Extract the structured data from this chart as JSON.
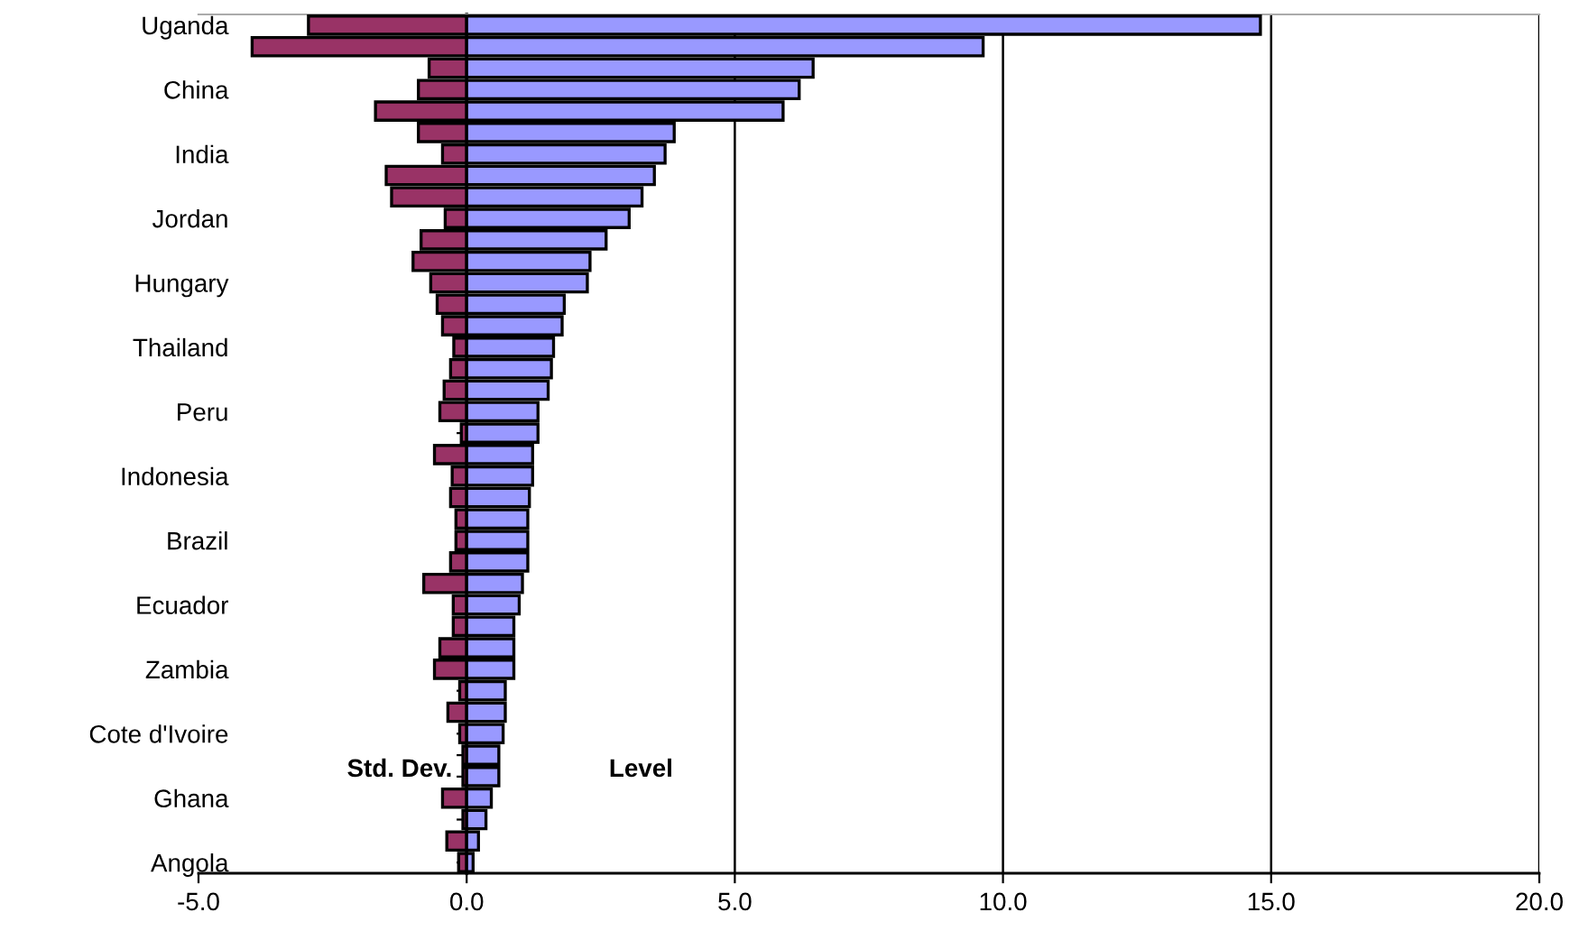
{
  "chart_data": {
    "type": "bar",
    "orientation": "horizontal",
    "stacked": true,
    "categories": [
      "Uganda",
      null,
      null,
      "China",
      null,
      null,
      "India",
      null,
      null,
      "Jordan",
      null,
      null,
      "Hungary",
      null,
      null,
      "Thailand",
      null,
      null,
      "Peru",
      null,
      null,
      "Indonesia",
      null,
      null,
      "Brazil",
      null,
      null,
      "Ecuador",
      null,
      null,
      "Zambia",
      null,
      null,
      "Cote d'Ivoire",
      null,
      null,
      "Ghana",
      null,
      null,
      "Angola"
    ],
    "series": [
      {
        "color": "#993366",
        "values": [
          -2.95,
          -4.0,
          -0.7,
          -0.9,
          -1.7,
          -0.9,
          -0.45,
          -1.5,
          -1.4,
          -0.4,
          -0.85,
          -1.0,
          -0.67,
          -0.55,
          -0.45,
          -0.24,
          -0.3,
          -0.42,
          -0.5,
          -0.1,
          -0.6,
          -0.27,
          -0.3,
          -0.2,
          -0.2,
          -0.3,
          -0.8,
          -0.25,
          -0.25,
          -0.5,
          -0.6,
          -0.13,
          -0.35,
          -0.13,
          -0.07,
          -0.07,
          -0.45,
          -0.07,
          -0.37,
          -0.15
        ]
      },
      {
        "color": "#9999ff",
        "values": [
          14.8,
          9.63,
          6.46,
          6.2,
          5.9,
          3.87,
          3.7,
          3.5,
          3.27,
          3.03,
          2.6,
          2.3,
          2.25,
          1.82,
          1.78,
          1.62,
          1.58,
          1.52,
          1.33,
          1.33,
          1.23,
          1.23,
          1.17,
          1.14,
          1.14,
          1.14,
          1.04,
          0.98,
          0.88,
          0.88,
          0.88,
          0.72,
          0.72,
          0.68,
          0.6,
          0.6,
          0.46,
          0.36,
          0.22,
          0.12
        ]
      }
    ],
    "xlim": [
      -5,
      20
    ],
    "xticks": [
      {
        "value": -5,
        "label": "-5.0"
      },
      {
        "value": 0,
        "label": "0.0"
      },
      {
        "value": 5,
        "label": "5.0"
      },
      {
        "value": 10,
        "label": "10.0"
      },
      {
        "value": 15,
        "label": "15.0"
      },
      {
        "value": 20,
        "label": "20.0"
      }
    ],
    "grid": "x",
    "legend": false,
    "annotations": [
      "Std. Dev.",
      "Level"
    ]
  }
}
